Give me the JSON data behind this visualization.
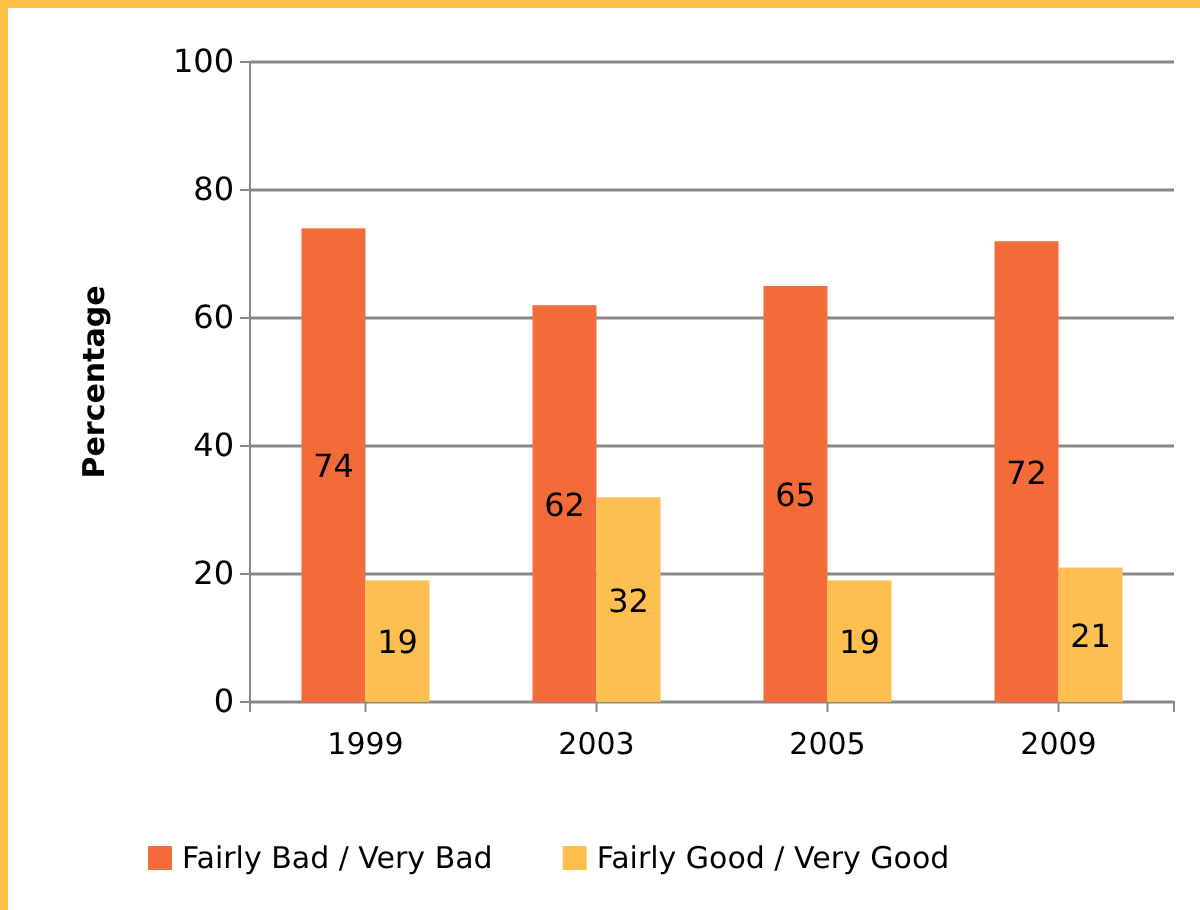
{
  "chart_data": {
    "type": "bar",
    "ylabel": "Percentage",
    "categories": [
      "1999",
      "2003",
      "2005",
      "2009"
    ],
    "series": [
      {
        "name": "Fairly Bad / Very Bad",
        "color": "#f26b38",
        "values": [
          74,
          62,
          65,
          72
        ]
      },
      {
        "name": "Fairly Good / Very Good",
        "color": "#fdbf4f",
        "values": [
          19,
          32,
          19,
          21
        ]
      }
    ],
    "ylim": [
      0,
      100
    ],
    "yticks": [
      0,
      20,
      40,
      60,
      80,
      100
    ],
    "grid": "y",
    "legend": "bottom",
    "data_labels": true
  }
}
